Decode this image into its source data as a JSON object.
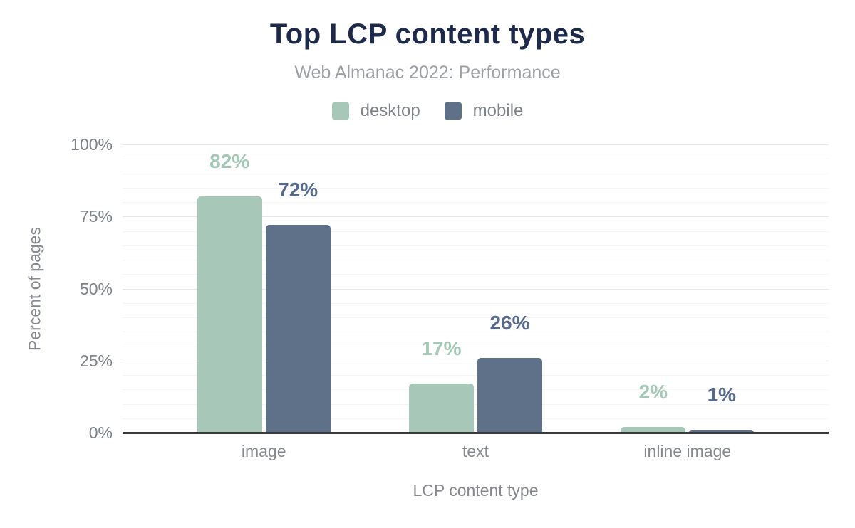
{
  "header": {
    "title": "Top LCP content types",
    "subtitle": "Web Almanac 2022: Performance"
  },
  "legend": [
    {
      "label": "desktop",
      "color": "#a7c8b8"
    },
    {
      "label": "mobile",
      "color": "#5e7189"
    }
  ],
  "chart_data": {
    "type": "bar",
    "title": "Top LCP content types",
    "subtitle": "Web Almanac 2022: Performance",
    "categories": [
      "image",
      "text",
      "inline image"
    ],
    "series": [
      {
        "name": "desktop",
        "color": "#a7c8b8",
        "label_color": "#a3c9b6",
        "values": [
          82,
          17,
          2
        ],
        "labels": [
          "82%",
          "17%",
          "2%"
        ]
      },
      {
        "name": "mobile",
        "color": "#5e7189",
        "label_color": "#56698f",
        "values": [
          72,
          26,
          1
        ],
        "labels": [
          "72%",
          "26%",
          "1%"
        ]
      }
    ],
    "xlabel": "LCP content type",
    "ylabel": "Percent of pages",
    "ylim": [
      0,
      100
    ],
    "yticks": [
      0,
      25,
      50,
      75,
      100
    ],
    "ytick_labels": [
      "0%",
      "25%",
      "50%",
      "75%",
      "100%"
    ],
    "minor_grid_step": 5,
    "major_grid_step": 25,
    "grid": true,
    "legend_position": "top"
  },
  "colors": {
    "title": "#1e2a4a",
    "subtitle": "#9ba1a6",
    "axis_text": "#7d838a",
    "axis_title_text": "#85898f",
    "axis_line": "#37393b",
    "grid_major": "#e7e8ea",
    "grid_minor": "#f4f5f6",
    "background": "#ffffff"
  }
}
